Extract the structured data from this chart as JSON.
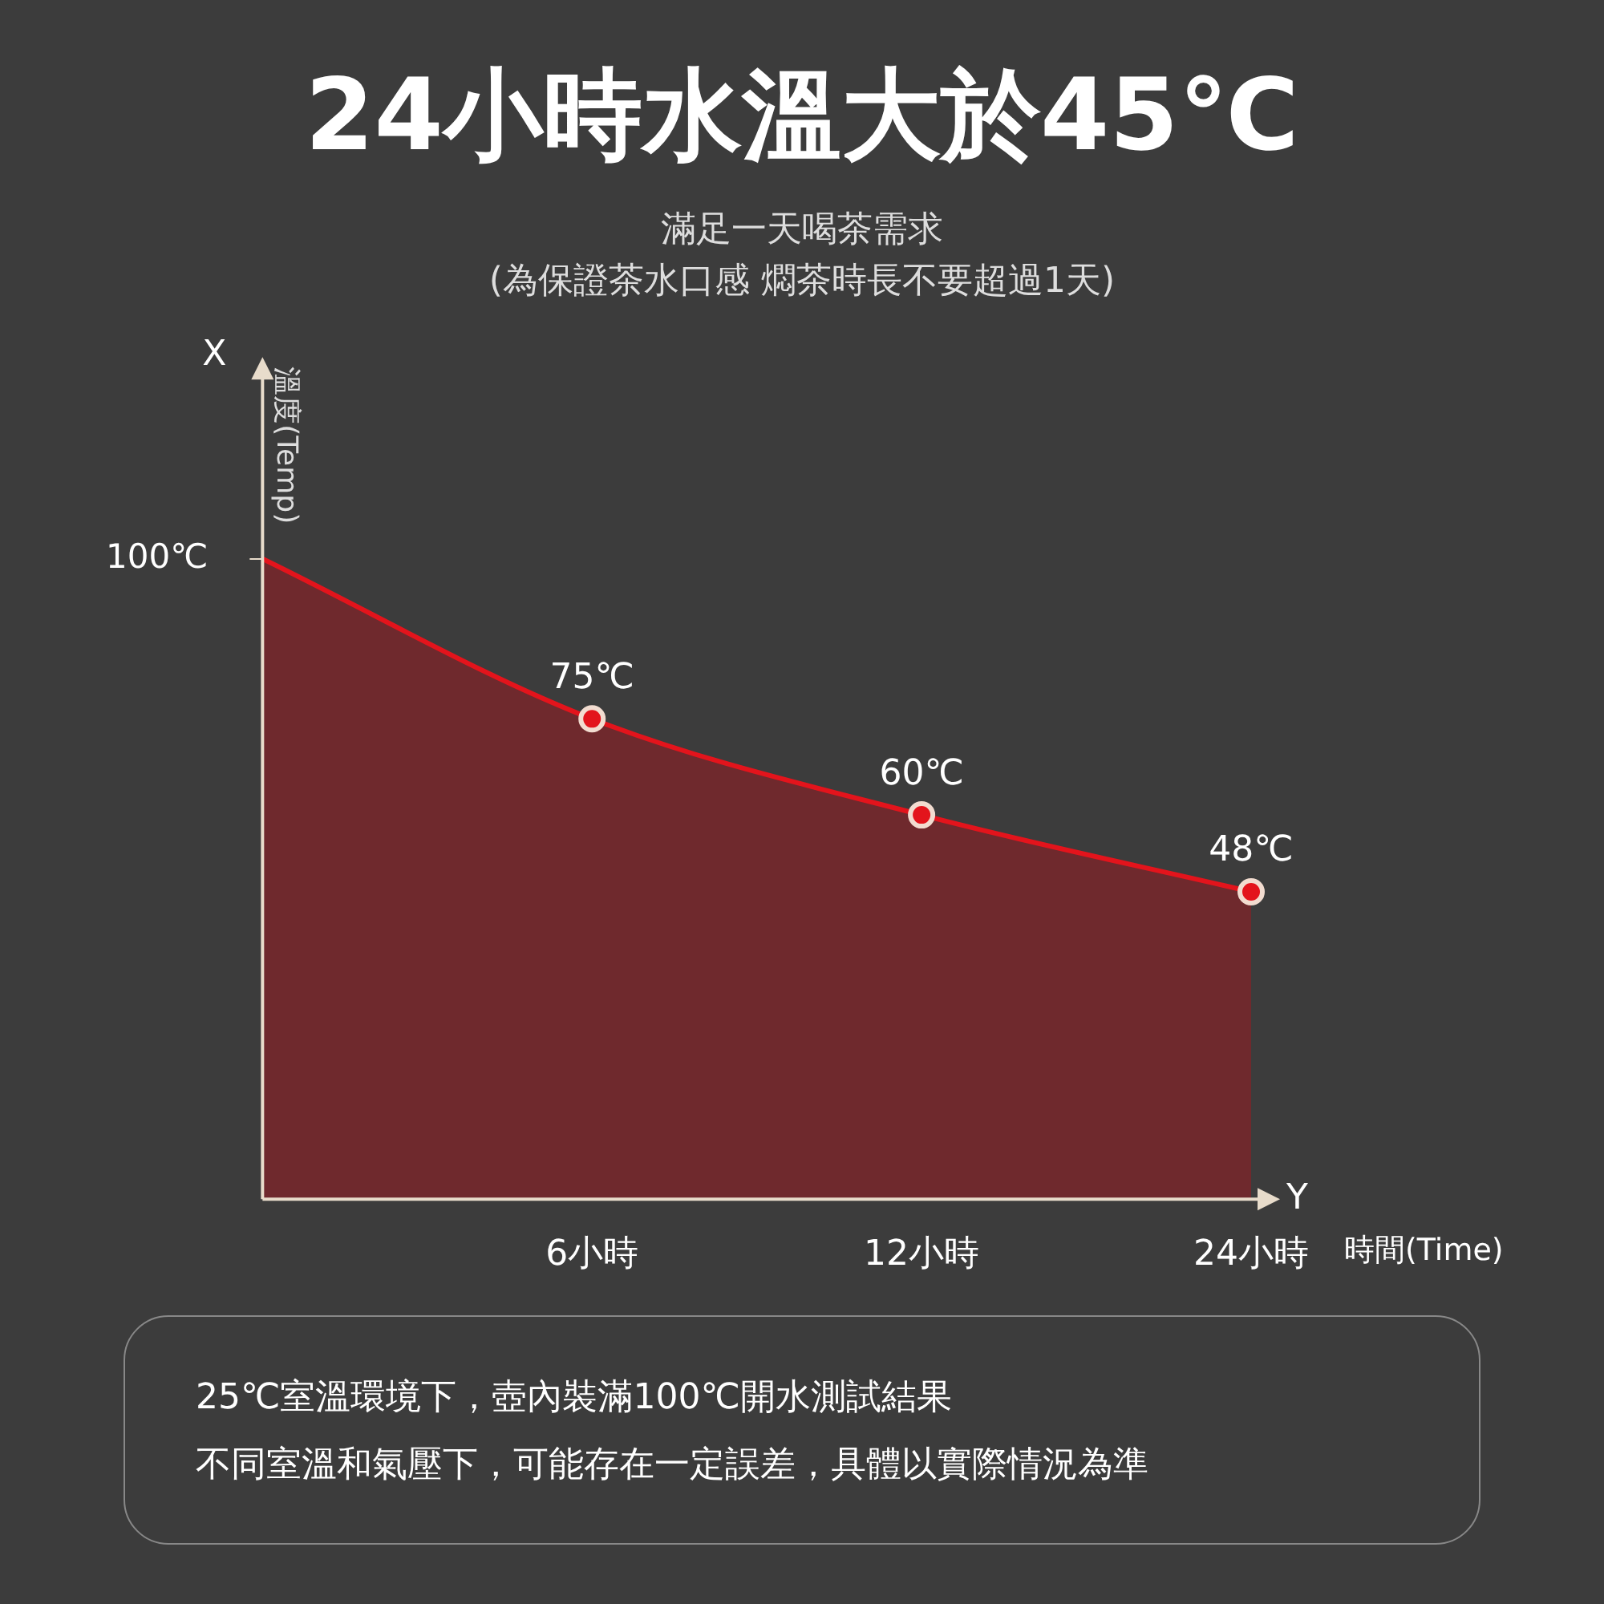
{
  "chart_data": {
    "type": "area",
    "title": "24小時水溫大於45℃",
    "subtitle": "滿足一天喝茶需求\n(為保證茶水口感 燜茶時長不要超過1天)",
    "xlabel": "時間(Time)",
    "ylabel": "溫度(Temp)",
    "categories": [
      null,
      "6小時",
      "12小時",
      "24小時"
    ],
    "series": [
      {
        "color": "#e3141c",
        "values": [
          100,
          75,
          60,
          48
        ],
        "value_labels": [
          null,
          "75℃",
          "60℃",
          "48℃"
        ]
      }
    ],
    "ylim": [
      0,
      130
    ],
    "yticks": [
      {
        "value": 100,
        "label": "100℃"
      }
    ],
    "marker": "circle",
    "legend": false,
    "grid": false,
    "annotations": [
      "X",
      "Y",
      "25℃室溫環境下，壺內裝滿100℃開水測試結果",
      "不同室溫和氣壓下，可能存在一定誤差，具體以實際情況為準"
    ]
  }
}
